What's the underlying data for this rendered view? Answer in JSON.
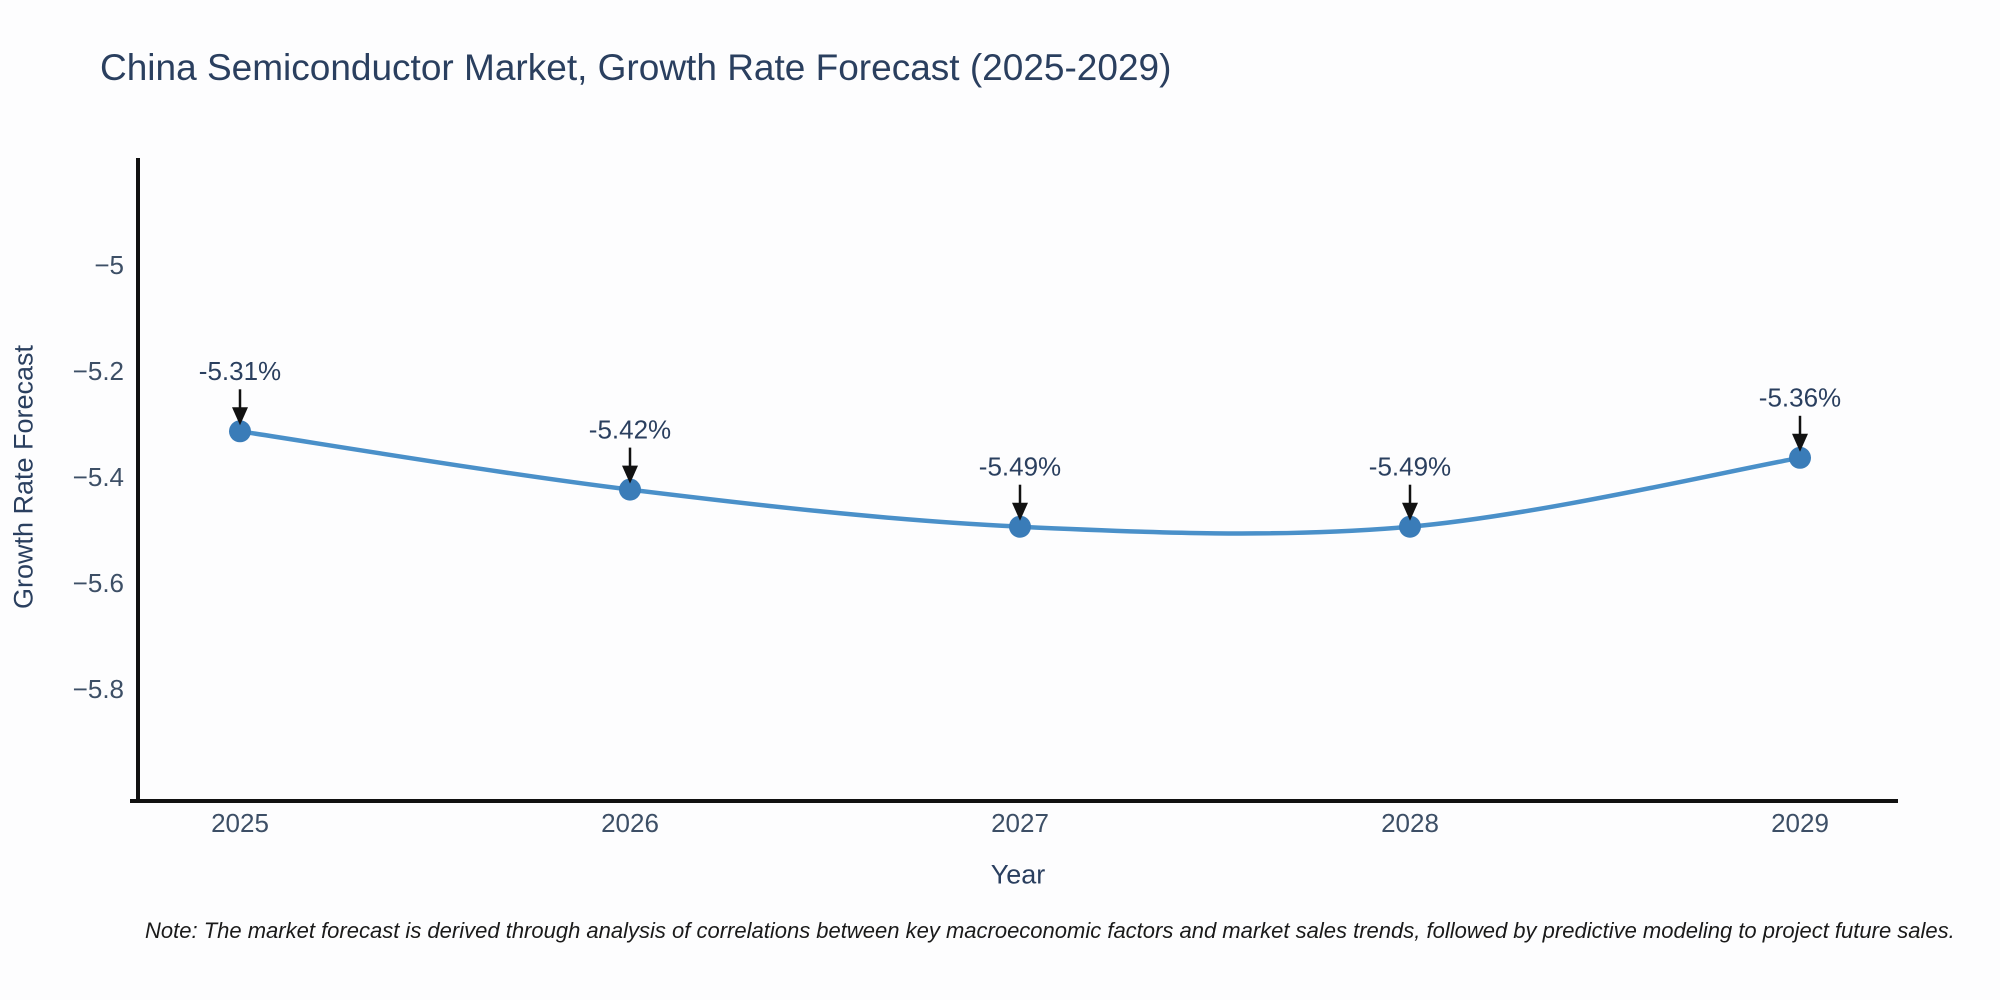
{
  "title": "China Semiconductor Market, Growth Rate Forecast (2025-2029)",
  "note": "Note: The market forecast is derived through analysis of correlations between key macroeconomic factors and market sales trends, followed by predictive modeling to project future sales.",
  "colors": {
    "background": "#fdfdfe",
    "line": "#4a90c9",
    "marker": "#3a7cb8",
    "axis": "#111111",
    "title_text": "#2a3f5f",
    "tick_text": "#3d4f66",
    "annotation_text": "#2a3f5f",
    "arrow": "#111111",
    "note_text": "#1a1a1a"
  },
  "chart_data": {
    "type": "line",
    "title": "China Semiconductor Market, Growth Rate Forecast (2025-2029)",
    "xlabel": "Year",
    "ylabel": "Growth Rate Forecast",
    "categories": [
      "2025",
      "2026",
      "2027",
      "2028",
      "2029"
    ],
    "series": [
      {
        "name": "Growth Rate Forecast",
        "values": [
          -5.31,
          -5.42,
          -5.49,
          -5.49,
          -5.36
        ],
        "point_labels": [
          "-5.31%",
          "-5.42%",
          "-5.49%",
          "-5.49%",
          "-5.36%"
        ]
      }
    ],
    "ylim": [
      -6.0,
      -4.8
    ],
    "yticks": [
      -5,
      -5.2,
      -5.4,
      -5.6,
      -5.8
    ],
    "ytick_labels": [
      "−5",
      "−5.2",
      "−5.4",
      "−5.6",
      "−5.8"
    ],
    "grid": false,
    "legend_position": "none",
    "line_shape": "spline",
    "markers": true,
    "annotation_style": "value labels above points with downward arrows"
  }
}
